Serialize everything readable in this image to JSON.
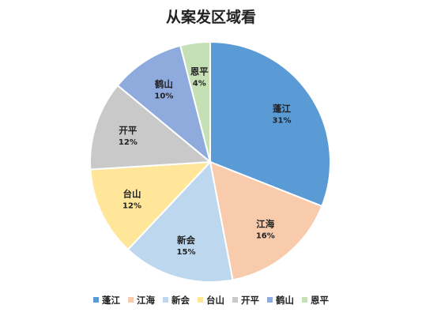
{
  "chart_data": {
    "type": "pie",
    "title": "从案发区域看",
    "legend_position": "bottom",
    "slices": [
      {
        "name": "蓬江",
        "value": 31,
        "label": "31%",
        "color": "#5b9bd5"
      },
      {
        "name": "江海",
        "value": 16,
        "label": "16%",
        "color": "#f8cbad"
      },
      {
        "name": "新会",
        "value": 15,
        "label": "15%",
        "color": "#bdd7ee"
      },
      {
        "name": "台山",
        "value": 12,
        "label": "12%",
        "color": "#ffe699"
      },
      {
        "name": "开平",
        "value": 12,
        "label": "12%",
        "color": "#c9c9c9"
      },
      {
        "name": "鹤山",
        "value": 10,
        "label": "10%",
        "color": "#8faadc"
      },
      {
        "name": "恩平",
        "value": 4,
        "label": "4%",
        "color": "#c5e0b4"
      }
    ]
  }
}
